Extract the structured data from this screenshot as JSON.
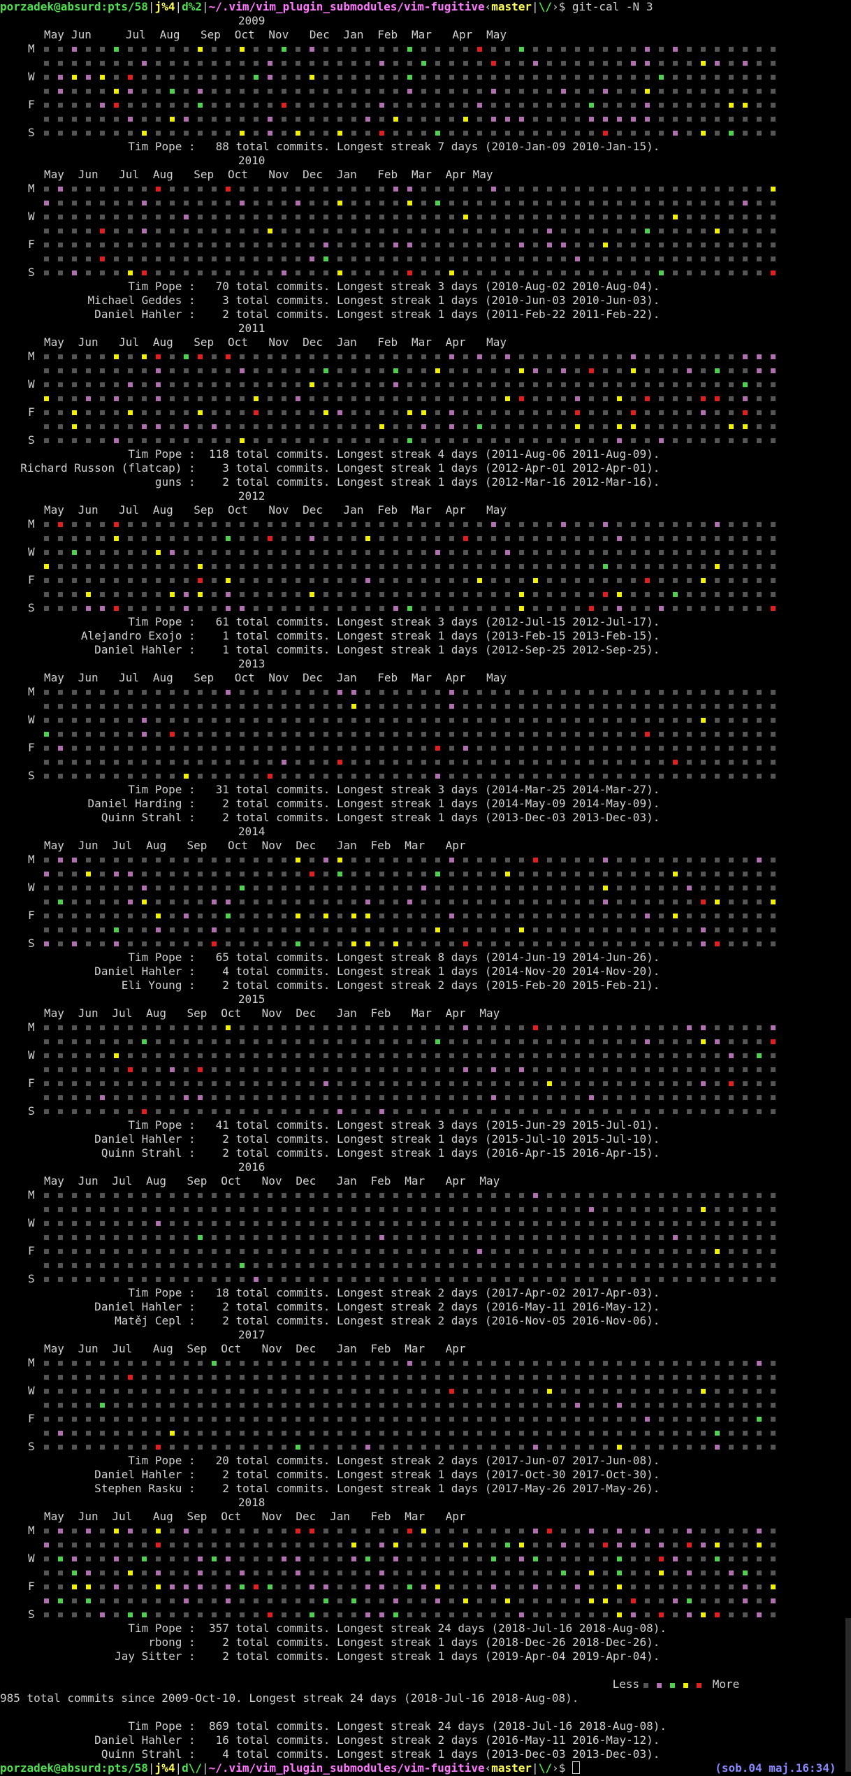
{
  "prompt": {
    "user_host": "porzadek@absurd:pts/58",
    "sep": "|",
    "jobs_top": "j%4",
    "jobs_bottom": "j%4",
    "dirstack_top": "d%2",
    "dirstack_bottom": "d\\/",
    "path": "~/.vim/vim_plugin_submodules/vim-fugitive",
    "branch": "master",
    "status": "\\/",
    "command": "git-cal -N 3"
  },
  "clock": "(sob.04 maj.16:34)",
  "colors": {
    "empty": "#555555",
    "level1": "#b070b0",
    "level2": "#50d050",
    "level3": "#f0f000",
    "level4": "#e02020",
    "background": "#000000",
    "text": "#d0d0d0"
  },
  "weekday_labels": [
    "M",
    "W",
    "F",
    "S"
  ],
  "years": [
    {
      "year": "2009",
      "months": [
        {
          "l": "May",
          "c": 2
        },
        {
          "l": "Jun",
          "c": 6
        },
        {
          "l": "Jul",
          "c": 14
        },
        {
          "l": "Aug",
          "c": 19
        },
        {
          "l": "Sep",
          "c": 25
        },
        {
          "l": "Oct",
          "c": 30
        },
        {
          "l": "Nov",
          "c": 35
        },
        {
          "l": "Dec",
          "c": 41
        },
        {
          "l": "Jan",
          "c": 46
        },
        {
          "l": "Feb",
          "c": 51
        },
        {
          "l": "Mar",
          "c": 56
        },
        {
          "l": "Apr",
          "c": 62
        },
        {
          "l": "May",
          "c": 67
        }
      ],
      "stats": [
        {
          "name": "Tim Pope",
          "count": "88",
          "streak": "7",
          "from": "2010-Jan-09",
          "to": "2010-Jan-15"
        }
      ]
    },
    {
      "year": "2010",
      "months": [
        {
          "l": "May",
          "c": 2
        },
        {
          "l": "Jun",
          "c": 7
        },
        {
          "l": "Jul",
          "c": 13
        },
        {
          "l": "Aug",
          "c": 18
        },
        {
          "l": "Sep",
          "c": 24
        },
        {
          "l": "Oct",
          "c": 29
        },
        {
          "l": "Nov",
          "c": 35
        },
        {
          "l": "Dec",
          "c": 40
        },
        {
          "l": "Jan",
          "c": 45
        },
        {
          "l": "Feb",
          "c": 51
        },
        {
          "l": "Mar",
          "c": 56
        },
        {
          "l": "Apr",
          "c": 61
        },
        {
          "l": "May",
          "c": 65
        }
      ],
      "stats": [
        {
          "name": "Tim Pope",
          "count": "70",
          "streak": "3",
          "from": "2010-Aug-02",
          "to": "2010-Aug-04"
        },
        {
          "name": "Michael Geddes",
          "count": "3",
          "streak": "1",
          "from": "2010-Jun-03",
          "to": "2010-Jun-03"
        },
        {
          "name": "Daniel Hahler",
          "count": "2",
          "streak": "1",
          "from": "2011-Feb-22",
          "to": "2011-Feb-22"
        }
      ]
    },
    {
      "year": "2011",
      "months": [
        {
          "l": "May",
          "c": 2
        },
        {
          "l": "Jun",
          "c": 7
        },
        {
          "l": "Jul",
          "c": 13
        },
        {
          "l": "Aug",
          "c": 18
        },
        {
          "l": "Sep",
          "c": 24
        },
        {
          "l": "Oct",
          "c": 29
        },
        {
          "l": "Nov",
          "c": 35
        },
        {
          "l": "Dec",
          "c": 40
        },
        {
          "l": "Jan",
          "c": 45
        },
        {
          "l": "Feb",
          "c": 51
        },
        {
          "l": "Mar",
          "c": 56
        },
        {
          "l": "Apr",
          "c": 61
        },
        {
          "l": "May",
          "c": 67
        }
      ],
      "stats": [
        {
          "name": "Tim Pope",
          "count": "118",
          "streak": "4",
          "from": "2011-Aug-06",
          "to": "2011-Aug-09"
        },
        {
          "name": "Richard Russon (flatcap)",
          "count": "3",
          "streak": "1",
          "from": "2012-Apr-01",
          "to": "2012-Apr-01"
        },
        {
          "name": "guns",
          "count": "2",
          "streak": "1",
          "from": "2012-Mar-16",
          "to": "2012-Mar-16"
        }
      ]
    },
    {
      "year": "2012",
      "months": [
        {
          "l": "May",
          "c": 2
        },
        {
          "l": "Jun",
          "c": 7
        },
        {
          "l": "Jul",
          "c": 13
        },
        {
          "l": "Aug",
          "c": 18
        },
        {
          "l": "Sep",
          "c": 24
        },
        {
          "l": "Oct",
          "c": 29
        },
        {
          "l": "Nov",
          "c": 35
        },
        {
          "l": "Dec",
          "c": 40
        },
        {
          "l": "Jan",
          "c": 46
        },
        {
          "l": "Feb",
          "c": 51
        },
        {
          "l": "Mar",
          "c": 56
        },
        {
          "l": "Apr",
          "c": 61
        },
        {
          "l": "May",
          "c": 67
        }
      ],
      "stats": [
        {
          "name": "Tim Pope",
          "count": "61",
          "streak": "3",
          "from": "2012-Jul-15",
          "to": "2012-Jul-17"
        },
        {
          "name": "Alejandro Exojo",
          "count": "1",
          "streak": "1",
          "from": "2013-Feb-15",
          "to": "2013-Feb-15"
        },
        {
          "name": "Daniel Hahler",
          "count": "1",
          "streak": "1",
          "from": "2012-Sep-25",
          "to": "2012-Sep-25"
        }
      ]
    },
    {
      "year": "2013",
      "months": [
        {
          "l": "May",
          "c": 2
        },
        {
          "l": "Jun",
          "c": 7
        },
        {
          "l": "Jul",
          "c": 13
        },
        {
          "l": "Aug",
          "c": 18
        },
        {
          "l": "Sep",
          "c": 24
        },
        {
          "l": "Oct",
          "c": 30
        },
        {
          "l": "Nov",
          "c": 35
        },
        {
          "l": "Dec",
          "c": 40
        },
        {
          "l": "Jan",
          "c": 45
        },
        {
          "l": "Feb",
          "c": 51
        },
        {
          "l": "Mar",
          "c": 56
        },
        {
          "l": "Apr",
          "c": 61
        },
        {
          "l": "May",
          "c": 67
        }
      ],
      "stats": [
        {
          "name": "Tim Pope",
          "count": "31",
          "streak": "3",
          "from": "2014-Mar-25",
          "to": "2014-Mar-27"
        },
        {
          "name": "Daniel Harding",
          "count": "2",
          "streak": "1",
          "from": "2014-May-09",
          "to": "2014-May-09"
        },
        {
          "name": "Quinn Strahl",
          "count": "2",
          "streak": "1",
          "from": "2013-Dec-03",
          "to": "2013-Dec-03"
        }
      ]
    },
    {
      "year": "2014",
      "months": [
        {
          "l": "May",
          "c": 2
        },
        {
          "l": "Jun",
          "c": 7
        },
        {
          "l": "Jul",
          "c": 12
        },
        {
          "l": "Aug",
          "c": 17
        },
        {
          "l": "Sep",
          "c": 23
        },
        {
          "l": "Oct",
          "c": 29
        },
        {
          "l": "Nov",
          "c": 34
        },
        {
          "l": "Dec",
          "c": 39
        },
        {
          "l": "Jan",
          "c": 45
        },
        {
          "l": "Feb",
          "c": 50
        },
        {
          "l": "Mar",
          "c": 55
        },
        {
          "l": "Apr",
          "c": 61
        }
      ],
      "stats": [
        {
          "name": "Tim Pope",
          "count": "65",
          "streak": "8",
          "from": "2014-Jun-19",
          "to": "2014-Jun-26"
        },
        {
          "name": "Daniel Hahler",
          "count": "4",
          "streak": "1",
          "from": "2014-Nov-20",
          "to": "2014-Nov-20"
        },
        {
          "name": "Eli Young",
          "count": "2",
          "streak": "2",
          "from": "2015-Feb-20",
          "to": "2015-Feb-21"
        }
      ]
    },
    {
      "year": "2015",
      "months": [
        {
          "l": "May",
          "c": 2
        },
        {
          "l": "Jun",
          "c": 7
        },
        {
          "l": "Jul",
          "c": 12
        },
        {
          "l": "Aug",
          "c": 17
        },
        {
          "l": "Sep",
          "c": 23
        },
        {
          "l": "Oct",
          "c": 28
        },
        {
          "l": "Nov",
          "c": 34
        },
        {
          "l": "Dec",
          "c": 39
        },
        {
          "l": "Jan",
          "c": 45
        },
        {
          "l": "Feb",
          "c": 50
        },
        {
          "l": "Mar",
          "c": 56
        },
        {
          "l": "Apr",
          "c": 61
        },
        {
          "l": "May",
          "c": 66
        }
      ],
      "stats": [
        {
          "name": "Tim Pope",
          "count": "41",
          "streak": "3",
          "from": "2015-Jun-29",
          "to": "2015-Jul-01"
        },
        {
          "name": "Daniel Hahler",
          "count": "2",
          "streak": "1",
          "from": "2015-Jul-10",
          "to": "2015-Jul-10"
        },
        {
          "name": "Quinn Strahl",
          "count": "2",
          "streak": "1",
          "from": "2016-Apr-15",
          "to": "2016-Apr-15"
        }
      ]
    },
    {
      "year": "2016",
      "months": [
        {
          "l": "May",
          "c": 2
        },
        {
          "l": "Jun",
          "c": 7
        },
        {
          "l": "Jul",
          "c": 12
        },
        {
          "l": "Aug",
          "c": 17
        },
        {
          "l": "Sep",
          "c": 23
        },
        {
          "l": "Oct",
          "c": 28
        },
        {
          "l": "Nov",
          "c": 34
        },
        {
          "l": "Dec",
          "c": 39
        },
        {
          "l": "Jan",
          "c": 45
        },
        {
          "l": "Feb",
          "c": 50
        },
        {
          "l": "Mar",
          "c": 55
        },
        {
          "l": "Apr",
          "c": 61
        },
        {
          "l": "May",
          "c": 66
        }
      ],
      "stats": [
        {
          "name": "Tim Pope",
          "count": "18",
          "streak": "2",
          "from": "2017-Apr-02",
          "to": "2017-Apr-03"
        },
        {
          "name": "Daniel Hahler",
          "count": "2",
          "streak": "2",
          "from": "2016-May-11",
          "to": "2016-May-12"
        },
        {
          "name": "Matěj Cepl",
          "count": "2",
          "streak": "2",
          "from": "2016-Nov-05",
          "to": "2016-Nov-06"
        }
      ]
    },
    {
      "year": "2017",
      "months": [
        {
          "l": "May",
          "c": 2
        },
        {
          "l": "Jun",
          "c": 7
        },
        {
          "l": "Jul",
          "c": 12
        },
        {
          "l": "Aug",
          "c": 18
        },
        {
          "l": "Sep",
          "c": 23
        },
        {
          "l": "Oct",
          "c": 28
        },
        {
          "l": "Nov",
          "c": 34
        },
        {
          "l": "Dec",
          "c": 39
        },
        {
          "l": "Jan",
          "c": 45
        },
        {
          "l": "Feb",
          "c": 50
        },
        {
          "l": "Mar",
          "c": 55
        },
        {
          "l": "Apr",
          "c": 61
        }
      ],
      "stats": [
        {
          "name": "Tim Pope",
          "count": "20",
          "streak": "2",
          "from": "2017-Jun-07",
          "to": "2017-Jun-08"
        },
        {
          "name": "Daniel Hahler",
          "count": "2",
          "streak": "1",
          "from": "2017-Oct-30",
          "to": "2017-Oct-30"
        },
        {
          "name": "Stephen Rasku",
          "count": "2",
          "streak": "1",
          "from": "2017-May-26",
          "to": "2017-May-26"
        }
      ]
    },
    {
      "year": "2018",
      "months": [
        {
          "l": "May",
          "c": 2
        },
        {
          "l": "Jun",
          "c": 7
        },
        {
          "l": "Jul",
          "c": 12
        },
        {
          "l": "Aug",
          "c": 18
        },
        {
          "l": "Sep",
          "c": 23
        },
        {
          "l": "Oct",
          "c": 28
        },
        {
          "l": "Nov",
          "c": 34
        },
        {
          "l": "Dec",
          "c": 39
        },
        {
          "l": "Jan",
          "c": 44
        },
        {
          "l": "Feb",
          "c": 50
        },
        {
          "l": "Mar",
          "c": 55
        },
        {
          "l": "Apr",
          "c": 61
        }
      ],
      "stats": [
        {
          "name": "Tim Pope",
          "count": "357",
          "streak": "24",
          "from": "2018-Jul-16",
          "to": "2018-Aug-08"
        },
        {
          "name": "rbong",
          "count": "2",
          "streak": "1",
          "from": "2018-Dec-26",
          "to": "2018-Dec-26"
        },
        {
          "name": "Jay Sitter",
          "count": "2",
          "streak": "1",
          "from": "2019-Apr-04",
          "to": "2019-Apr-04"
        }
      ]
    }
  ],
  "legend": {
    "less": "Less",
    "more": "More"
  },
  "summary": "985 total commits since 2009-Oct-10. Longest streak 24 days (2018-Jul-16 2018-Aug-08).",
  "overall_stats": [
    {
      "name": "Tim Pope",
      "count": "869",
      "streak": "24",
      "from": "2018-Jul-16",
      "to": "2018-Aug-08"
    },
    {
      "name": "Daniel Hahler",
      "count": "16",
      "streak": "2",
      "from": "2016-May-11",
      "to": "2016-May-12"
    },
    {
      "name": "Quinn Strahl",
      "count": "4",
      "streak": "1",
      "from": "2013-Dec-03",
      "to": "2013-Dec-03"
    }
  ]
}
